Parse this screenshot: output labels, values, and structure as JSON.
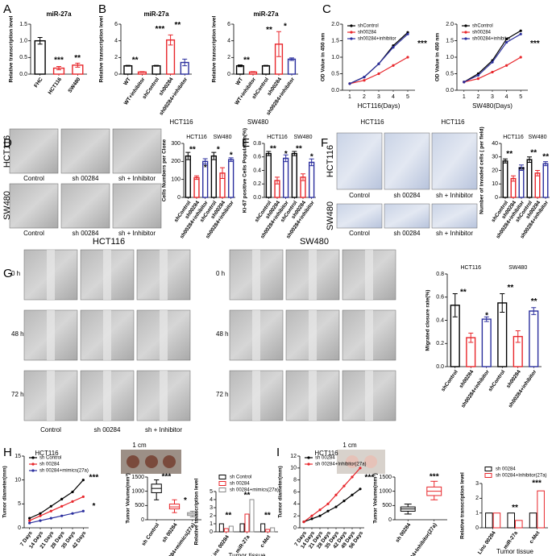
{
  "figure": {
    "panel_letters": [
      "A",
      "B",
      "C",
      "D",
      "E",
      "F",
      "G",
      "H",
      "I"
    ],
    "labels": [
      "HCT116",
      "SW480",
      "HCT116",
      "HCT116",
      "HCT116",
      "SW480",
      "Control",
      "sh 00284",
      "sh + Inhibitor",
      "Control",
      "sh 00284",
      "sh + Inhibitor",
      "HCT116",
      "SW480",
      "Control",
      "sh 00284",
      "sh + Inhibitor",
      "Control",
      "sh 00284",
      "sh + Inhibitor",
      "HCT116",
      "SW480",
      "0 h",
      "48 h",
      "72 h",
      "0 h",
      "48 h",
      "72 h",
      "Control",
      "sh 00284",
      "sh + Inhibitor",
      "HCT116",
      "1 cm",
      "HCT116",
      "1 cm"
    ]
  },
  "chart_data": [
    {
      "type": "bar",
      "title": "miR-27a",
      "ylabel": "Relative transcription level",
      "categories": [
        "FHC",
        "HCT116",
        "SW480"
      ],
      "values": [
        1.0,
        0.18,
        0.27
      ],
      "errors": [
        0.1,
        0.05,
        0.06
      ],
      "colors": [
        "#000000",
        "#e8262b",
        "#e8262b"
      ],
      "ylim": [
        0,
        1.5
      ],
      "yticks": [
        {
          "value": 0,
          "label": "0.0"
        },
        {
          "value": 0.5,
          "label": "0.5"
        },
        {
          "value": 1,
          "label": "1.0"
        },
        {
          "value": 1.5,
          "label": "1.5"
        }
      ],
      "annotations": [
        "***",
        "**"
      ]
    },
    {
      "type": "bar",
      "title": "miR-27a",
      "ylabel": "Relative transcription level",
      "categories": [
        "WT",
        "WT+inhibitor",
        "shControl",
        "sh00284",
        "sh00284+inhibitor"
      ],
      "values": [
        1.0,
        0.25,
        1.0,
        4.1,
        1.4
      ],
      "errors": [
        0.05,
        0.05,
        0.05,
        0.6,
        0.4
      ],
      "colors": [
        "#000000",
        "#e8262b",
        "#000000",
        "#e8262b",
        "#2b2f9e"
      ],
      "ylim": [
        0,
        6
      ],
      "yticks": [
        0,
        2,
        4,
        6
      ],
      "annotations": [
        "**",
        "***",
        "**"
      ]
    },
    {
      "type": "bar",
      "title": "miR-27a",
      "ylabel": "Relative transcription level",
      "categories": [
        "WT",
        "WT+inhibitor",
        "shControl",
        "sh00284",
        "sh00284+inhibitor"
      ],
      "values": [
        1.0,
        0.25,
        1.0,
        3.6,
        1.8
      ],
      "errors": [
        0.1,
        0.05,
        0.05,
        1.5,
        0.15
      ],
      "colors": [
        "#000000",
        "#e8262b",
        "#000000",
        "#e8262b",
        "#2b2f9e"
      ],
      "ylim": [
        0,
        6
      ],
      "yticks": [
        0,
        2,
        4,
        6
      ],
      "annotations": [
        "**",
        "**",
        "*"
      ]
    },
    {
      "type": "line",
      "ylabel": "OD Value in 450 nm",
      "xlabel": "HCT116(Days)",
      "categories": [
        "1",
        "2",
        "3",
        "4",
        "5"
      ],
      "series": [
        {
          "name": "shControl",
          "color": "#000000",
          "values": [
            0.2,
            0.4,
            0.8,
            1.35,
            1.75
          ]
        },
        {
          "name": "sh00284",
          "color": "#e8262b",
          "values": [
            0.2,
            0.3,
            0.5,
            0.75,
            1.0
          ]
        },
        {
          "name": "sh00284+inhibitor",
          "color": "#2b2f9e",
          "values": [
            0.2,
            0.4,
            0.8,
            1.3,
            1.7
          ]
        }
      ],
      "ylim": [
        0,
        2
      ],
      "yticks": [
        {
          "value": 0,
          "label": "0.0"
        },
        {
          "value": 0.5,
          "label": "0.5"
        },
        {
          "value": 1,
          "label": "1.0"
        },
        {
          "value": 1.5,
          "label": "1.5"
        },
        {
          "value": 2,
          "label": "2.0"
        }
      ],
      "annotations": [
        "***"
      ]
    },
    {
      "type": "line",
      "ylabel": "OD Value in 450 nm",
      "xlabel": "SW480(Days)",
      "categories": [
        "1",
        "2",
        "3",
        "4",
        "5"
      ],
      "series": [
        {
          "name": "shControl",
          "color": "#000000",
          "values": [
            0.25,
            0.5,
            0.9,
            1.55,
            1.8
          ]
        },
        {
          "name": "sh00284",
          "color": "#e8262b",
          "values": [
            0.25,
            0.35,
            0.55,
            0.75,
            1.0
          ]
        },
        {
          "name": "sh00284+inhibitor",
          "color": "#2b2f9e",
          "values": [
            0.25,
            0.45,
            0.85,
            1.45,
            1.7
          ]
        }
      ],
      "ylim": [
        0,
        2
      ],
      "yticks": [
        {
          "value": 0,
          "label": "0.0"
        },
        {
          "value": 0.5,
          "label": "0.5"
        },
        {
          "value": 1,
          "label": "1.0"
        },
        {
          "value": 1.5,
          "label": "1.5"
        },
        {
          "value": 2,
          "label": "2.0"
        }
      ],
      "annotations": [
        "***"
      ]
    },
    {
      "type": "bar",
      "ylabel": "Cells Numbers per Clone",
      "group_labels": [
        "HCT116",
        "SW480"
      ],
      "categories": [
        "shControl",
        "sh00284",
        "sh00284+inhibitor",
        "shControl",
        "sh00284",
        "sh00284+inhibitor"
      ],
      "values": [
        230,
        110,
        200,
        230,
        135,
        210
      ],
      "errors": [
        20,
        10,
        15,
        20,
        30,
        10
      ],
      "colors": [
        "#000000",
        "#e8262b",
        "#2b2f9e",
        "#000000",
        "#e8262b",
        "#2b2f9e"
      ],
      "ylim": [
        0,
        300
      ],
      "yticks": [
        0,
        100,
        200,
        300
      ],
      "annotations": [
        "**",
        "*",
        "*",
        "*"
      ]
    },
    {
      "type": "bar",
      "ylabel": "Ki-67 positive Cells Population(%)",
      "group_labels": [
        "HCT116",
        "SW480"
      ],
      "categories": [
        "shControl",
        "sh00284",
        "sh00284+inhibitor",
        "shControl",
        "sh00284",
        "sh00284+inhibitor"
      ],
      "values": [
        0.65,
        0.25,
        0.58,
        0.65,
        0.3,
        0.52
      ],
      "errors": [
        0.03,
        0.05,
        0.05,
        0.03,
        0.05,
        0.05
      ],
      "colors": [
        "#000000",
        "#e8262b",
        "#2b2f9e",
        "#000000",
        "#e8262b",
        "#2b2f9e"
      ],
      "ylim": [
        0,
        0.8
      ],
      "yticks": [
        {
          "value": 0,
          "label": "0.0"
        },
        {
          "value": 0.2,
          "label": "0.2"
        },
        {
          "value": 0.4,
          "label": "0.4"
        },
        {
          "value": 0.6,
          "label": "0.6"
        },
        {
          "value": 0.8,
          "label": "0.8"
        }
      ],
      "annotations": [
        "**",
        "*",
        "**",
        "*"
      ]
    },
    {
      "type": "bar",
      "ylabel": "Number of invaded cells ( per field)",
      "group_labels": [
        "HCT116",
        "SW480"
      ],
      "categories": [
        "shControl",
        "sh00284",
        "sh00284+inhibitor",
        "shControl",
        "sh00284",
        "sh00284+inhibitor"
      ],
      "values": [
        27,
        14,
        22,
        28,
        18,
        25
      ],
      "errors": [
        1.5,
        2,
        2,
        2,
        2,
        1.5
      ],
      "colors": [
        "#000000",
        "#e8262b",
        "#2b2f9e",
        "#000000",
        "#e8262b",
        "#2b2f9e"
      ],
      "ylim": [
        0,
        40
      ],
      "yticks": [
        0,
        10,
        20,
        30,
        40
      ],
      "annotations": [
        "**",
        "**",
        "**",
        "**"
      ]
    },
    {
      "type": "bar",
      "ylabel": "Migrated closure rate(%)",
      "group_labels": [
        "HCT116",
        "SW480"
      ],
      "categories": [
        "shControl",
        "sh00284",
        "sh00284+inhibitor",
        "shControl",
        "sh00284",
        "sh00284+inhibitor"
      ],
      "values": [
        0.53,
        0.25,
        0.41,
        0.55,
        0.26,
        0.48
      ],
      "errors": [
        0.1,
        0.04,
        0.02,
        0.08,
        0.05,
        0.03
      ],
      "colors": [
        "#000000",
        "#e8262b",
        "#2b2f9e",
        "#000000",
        "#e8262b",
        "#2b2f9e"
      ],
      "ylim": [
        0,
        0.8
      ],
      "yticks": [
        {
          "value": 0,
          "label": "0.0"
        },
        {
          "value": 0.2,
          "label": "0.2"
        },
        {
          "value": 0.4,
          "label": "0.4"
        },
        {
          "value": 0.6,
          "label": "0.6"
        },
        {
          "value": 0.8,
          "label": "0.8"
        }
      ],
      "annotations": [
        "**",
        "*",
        "**",
        "**"
      ]
    },
    {
      "type": "line",
      "ylabel": "Tumor diameter(mm)",
      "categories": [
        "7 Days",
        "14 Days",
        "21 Days",
        "28 Days",
        "35 Days",
        "42 Days"
      ],
      "series": [
        {
          "name": "sh Control",
          "color": "#000000",
          "values": [
            2,
            3,
            4.5,
            6,
            7.5,
            10
          ]
        },
        {
          "name": "sh 00284",
          "color": "#e8262b",
          "values": [
            1.5,
            2.5,
            3.5,
            4.5,
            5.5,
            6.5
          ]
        },
        {
          "name": "sh 00284+mimics(27a)",
          "color": "#2b2f9e",
          "values": [
            1,
            1.5,
            2,
            2.5,
            3,
            3.5
          ]
        }
      ],
      "ylim": [
        0,
        15
      ],
      "yticks": [
        0,
        5,
        10,
        15
      ],
      "annotations": [
        "***",
        "*"
      ]
    },
    {
      "type": "box",
      "ylabel": "Tumor Volume(mm³)",
      "categories": [
        "sh Control",
        "sh 00284",
        "sh 00284+mimics(27a)"
      ],
      "boxes": [
        [
          700,
          950,
          1100,
          1250,
          1400
        ],
        [
          250,
          380,
          450,
          550,
          700
        ],
        [
          100,
          150,
          200,
          250,
          300
        ]
      ],
      "colors": [
        "#000000",
        "#e8262b",
        "#888888"
      ],
      "ylim": [
        0,
        1500
      ],
      "yticks": [
        0,
        500,
        1000,
        1500
      ],
      "annotations": [
        "***",
        "*"
      ]
    },
    {
      "type": "bar",
      "ylabel": "Relative transcription level",
      "xlabel": "Tumor tissue",
      "categories": [
        "Linc 00284",
        "miR-27a",
        "c-Met"
      ],
      "series": [
        {
          "name": "sh Control",
          "color": "#000000",
          "values": [
            1,
            1,
            1
          ]
        },
        {
          "name": "sh 00284",
          "color": "#e8262b",
          "values": [
            0.4,
            2.2,
            0.3
          ]
        },
        {
          "name": "sh 00284+mimics(27a)",
          "color": "#888888",
          "values": [
            0.7,
            4,
            0.5
          ]
        }
      ],
      "ylim": [
        0,
        5
      ],
      "yticks": [
        0,
        1,
        2,
        3,
        4,
        5
      ],
      "annotations": [
        "**",
        "**",
        "**"
      ]
    },
    {
      "type": "line",
      "ylabel": "Tumor diameter(mm)",
      "categories": [
        "7 Days",
        "14 Days",
        "21 Days",
        "28 Days",
        "35 Days",
        "42 Days",
        "49 Days",
        "56 Days"
      ],
      "series": [
        {
          "name": "sh 00284",
          "color": "#000000",
          "values": [
            1,
            1.5,
            2,
            2.8,
            3.5,
            4.5,
            5.5,
            6.5
          ]
        },
        {
          "name": "sh 00284+Inhibitor(27a)",
          "color": "#e8262b",
          "values": [
            1,
            2,
            3,
            4,
            5.5,
            7,
            8.5,
            10
          ]
        }
      ],
      "ylim": [
        0,
        12
      ],
      "yticks": [
        0,
        2,
        4,
        6,
        8,
        10,
        12
      ],
      "annotations": [
        "***"
      ]
    },
    {
      "type": "box",
      "ylabel": "Tumor Volume(mm³)",
      "categories": [
        "sh 00284",
        "sh 00284+Inhibitor(27a)"
      ],
      "boxes": [
        [
          200,
          300,
          380,
          450,
          550
        ],
        [
          700,
          850,
          1000,
          1150,
          1350
        ]
      ],
      "colors": [
        "#000000",
        "#e8262b"
      ],
      "ylim": [
        0,
        1500
      ],
      "yticks": [
        0,
        500,
        1000,
        1500
      ],
      "annotations": [
        "***"
      ]
    },
    {
      "type": "bar",
      "ylabel": "Relative transcription level",
      "xlabel": "Tumor tissue",
      "categories": [
        "Linc 00284",
        "miR-27a",
        "c-Met"
      ],
      "series": [
        {
          "name": "sh 00284",
          "color": "#000000",
          "values": [
            1,
            1,
            1
          ]
        },
        {
          "name": "sh 00284+Inhibitor(27a)",
          "color": "#e8262b",
          "values": [
            1,
            0.5,
            2.5
          ]
        }
      ],
      "ylim": [
        0,
        3
      ],
      "yticks": [
        0,
        1,
        2,
        3
      ],
      "annotations": [
        "**",
        "***"
      ]
    }
  ]
}
